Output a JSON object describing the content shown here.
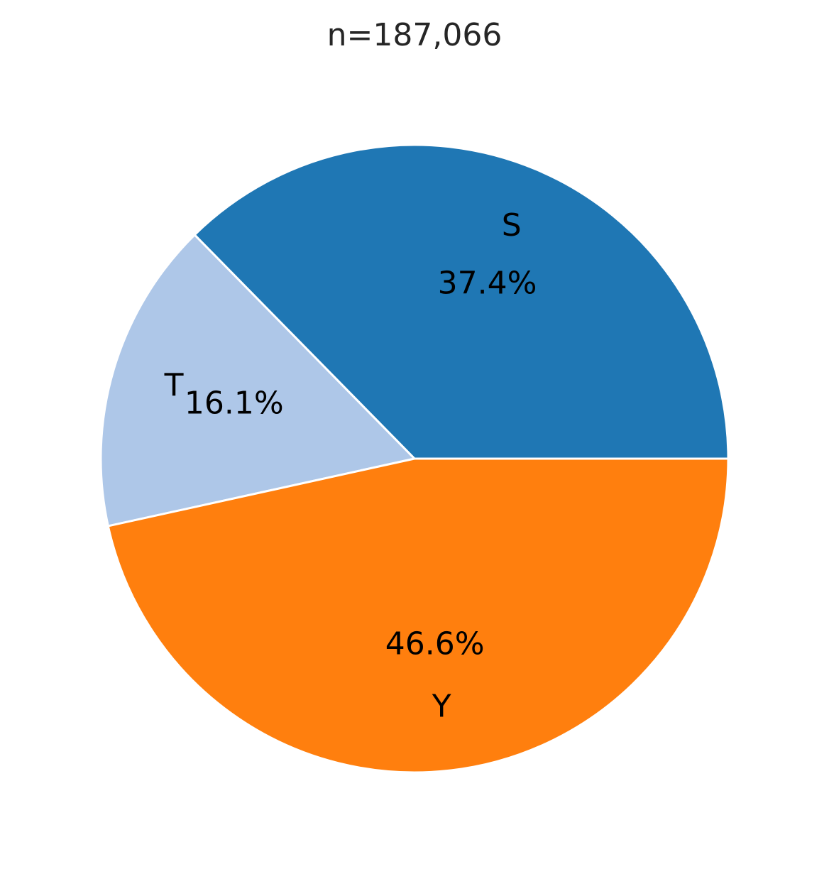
{
  "chart_data": {
    "type": "pie",
    "title": "n=187,066",
    "categories": [
      "S",
      "T",
      "Y"
    ],
    "values": [
      37.4,
      16.1,
      46.6
    ],
    "value_labels": [
      "37.4%",
      "16.1%",
      "46.6%"
    ],
    "colors": [
      "#1f77b4",
      "#aec7e8",
      "#ff7f0e"
    ]
  }
}
